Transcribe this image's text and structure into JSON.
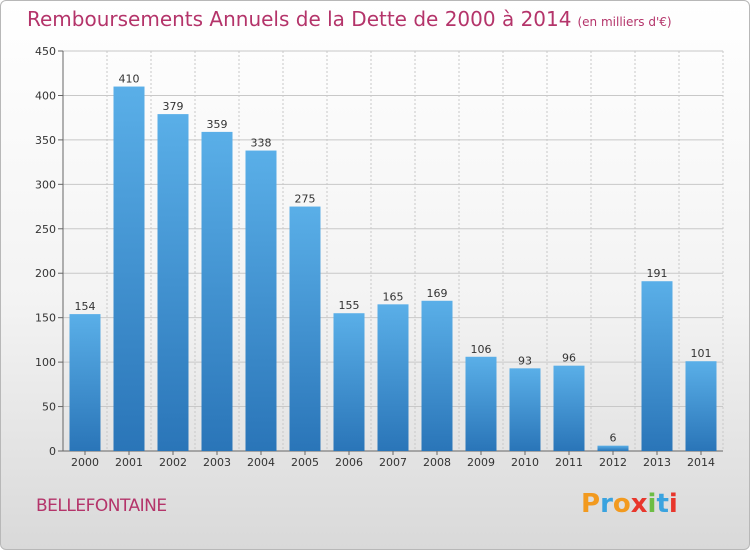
{
  "header": {
    "title": "Remboursements Annuels de la Dette de 2000 à 2014",
    "unit": "(en milliers d'€)"
  },
  "footer": {
    "city": "BELLEFONTAINE",
    "logo_letters": [
      "P",
      "r",
      "o",
      "x",
      "i",
      "t",
      "i"
    ]
  },
  "colors": {
    "title": "#b4346a",
    "bar_top": "#5aafe8",
    "bar_bottom": "#2a75b8",
    "grid": "#c8c8c8",
    "logo": [
      "#f29a1f",
      "#3aa3df",
      "#f29a1f",
      "#e8362c",
      "#6dbd45",
      "#3aa3df",
      "#e8362c"
    ]
  },
  "chart_data": {
    "type": "bar",
    "title": "Remboursements Annuels de la Dette de 2000 à 2014",
    "xlabel": "",
    "ylabel": "",
    "ylim": [
      0,
      450
    ],
    "yticks": [
      0,
      50,
      100,
      150,
      200,
      250,
      300,
      350,
      400,
      450
    ],
    "grid": true,
    "categories": [
      "2000",
      "2001",
      "2002",
      "2003",
      "2004",
      "2005",
      "2006",
      "2007",
      "2008",
      "2009",
      "2010",
      "2011",
      "2012",
      "2013",
      "2014"
    ],
    "values": [
      154,
      410,
      379,
      359,
      338,
      275,
      155,
      165,
      169,
      106,
      93,
      96,
      6,
      191,
      101
    ]
  }
}
